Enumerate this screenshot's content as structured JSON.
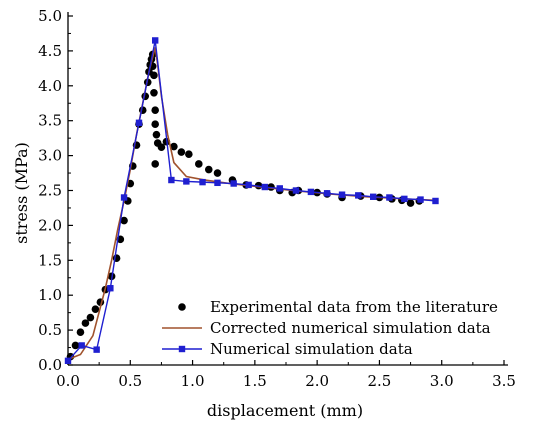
{
  "chart_data": {
    "type": "line",
    "title": "",
    "xlabel": "displacement (mm)",
    "ylabel": "stress (MPa)",
    "xlim": [
      0.0,
      3.5
    ],
    "ylim": [
      0.0,
      5.0
    ],
    "x_ticks": [
      "0.0",
      "0.5",
      "1.0",
      "1.5",
      "2.0",
      "2.5",
      "3.0",
      "3.5"
    ],
    "y_ticks": [
      "0.0",
      "0.5",
      "1.0",
      "1.5",
      "2.0",
      "2.5",
      "3.0",
      "3.5",
      "4.0",
      "4.5",
      "5.0"
    ],
    "grid": false,
    "legend_position": "bottom-right",
    "series": [
      {
        "name": "Experimental data from the literature",
        "style": "scatter",
        "color": "#000000",
        "points": [
          [
            0.02,
            0.12
          ],
          [
            0.06,
            0.28
          ],
          [
            0.1,
            0.47
          ],
          [
            0.14,
            0.6
          ],
          [
            0.18,
            0.68
          ],
          [
            0.22,
            0.8
          ],
          [
            0.26,
            0.9
          ],
          [
            0.3,
            1.08
          ],
          [
            0.35,
            1.27
          ],
          [
            0.39,
            1.53
          ],
          [
            0.42,
            1.8
          ],
          [
            0.45,
            2.07
          ],
          [
            0.48,
            2.35
          ],
          [
            0.5,
            2.6
          ],
          [
            0.52,
            2.85
          ],
          [
            0.55,
            3.15
          ],
          [
            0.57,
            3.45
          ],
          [
            0.6,
            3.65
          ],
          [
            0.62,
            3.85
          ],
          [
            0.64,
            4.05
          ],
          [
            0.65,
            4.2
          ],
          [
            0.66,
            4.3
          ],
          [
            0.67,
            4.38
          ],
          [
            0.68,
            4.45
          ],
          [
            0.68,
            4.28
          ],
          [
            0.69,
            4.15
          ],
          [
            0.69,
            3.9
          ],
          [
            0.7,
            3.65
          ],
          [
            0.7,
            3.45
          ],
          [
            0.71,
            3.3
          ],
          [
            0.7,
            2.88
          ],
          [
            0.72,
            3.18
          ],
          [
            0.75,
            3.12
          ],
          [
            0.79,
            3.2
          ],
          [
            0.85,
            3.13
          ],
          [
            0.91,
            3.05
          ],
          [
            0.97,
            3.02
          ],
          [
            1.05,
            2.88
          ],
          [
            1.13,
            2.8
          ],
          [
            1.2,
            2.75
          ],
          [
            1.32,
            2.65
          ],
          [
            1.43,
            2.58
          ],
          [
            1.53,
            2.57
          ],
          [
            1.63,
            2.55
          ],
          [
            1.7,
            2.5
          ],
          [
            1.8,
            2.47
          ],
          [
            1.85,
            2.5
          ],
          [
            2.0,
            2.47
          ],
          [
            2.08,
            2.45
          ],
          [
            2.2,
            2.4
          ],
          [
            2.35,
            2.42
          ],
          [
            2.5,
            2.4
          ],
          [
            2.6,
            2.38
          ],
          [
            2.68,
            2.36
          ],
          [
            2.75,
            2.32
          ],
          [
            2.82,
            2.35
          ]
        ]
      },
      {
        "name": "Corrected numerical simulation data",
        "style": "line",
        "color": "#a0522d",
        "points": [
          [
            0.0,
            0.08
          ],
          [
            0.1,
            0.15
          ],
          [
            0.2,
            0.42
          ],
          [
            0.3,
            1.1
          ],
          [
            0.35,
            1.5
          ],
          [
            0.4,
            1.95
          ],
          [
            0.45,
            2.35
          ],
          [
            0.5,
            2.8
          ],
          [
            0.55,
            3.3
          ],
          [
            0.6,
            3.75
          ],
          [
            0.65,
            4.2
          ],
          [
            0.7,
            4.55
          ],
          [
            0.72,
            4.3
          ],
          [
            0.75,
            3.85
          ],
          [
            0.8,
            3.3
          ],
          [
            0.85,
            2.9
          ],
          [
            0.95,
            2.7
          ],
          [
            1.1,
            2.65
          ],
          [
            1.3,
            2.6
          ],
          [
            1.5,
            2.56
          ],
          [
            1.8,
            2.5
          ],
          [
            2.1,
            2.45
          ],
          [
            2.4,
            2.41
          ],
          [
            2.7,
            2.38
          ],
          [
            2.95,
            2.36
          ]
        ]
      },
      {
        "name": "Numerical simulation data",
        "style": "line-markers",
        "color": "#1f1fd0",
        "points": [
          [
            0.0,
            0.06
          ],
          [
            0.11,
            0.28
          ],
          [
            0.23,
            0.22
          ],
          [
            0.34,
            1.1
          ],
          [
            0.45,
            2.4
          ],
          [
            0.57,
            3.47
          ],
          [
            0.7,
            4.65
          ],
          [
            0.83,
            2.65
          ],
          [
            0.95,
            2.63
          ],
          [
            1.08,
            2.62
          ],
          [
            1.2,
            2.61
          ],
          [
            1.33,
            2.6
          ],
          [
            1.45,
            2.58
          ],
          [
            1.58,
            2.55
          ],
          [
            1.7,
            2.53
          ],
          [
            1.83,
            2.5
          ],
          [
            1.95,
            2.48
          ],
          [
            2.08,
            2.46
          ],
          [
            2.2,
            2.44
          ],
          [
            2.33,
            2.43
          ],
          [
            2.45,
            2.41
          ],
          [
            2.58,
            2.4
          ],
          [
            2.7,
            2.38
          ],
          [
            2.83,
            2.37
          ],
          [
            2.95,
            2.35
          ]
        ]
      }
    ]
  }
}
